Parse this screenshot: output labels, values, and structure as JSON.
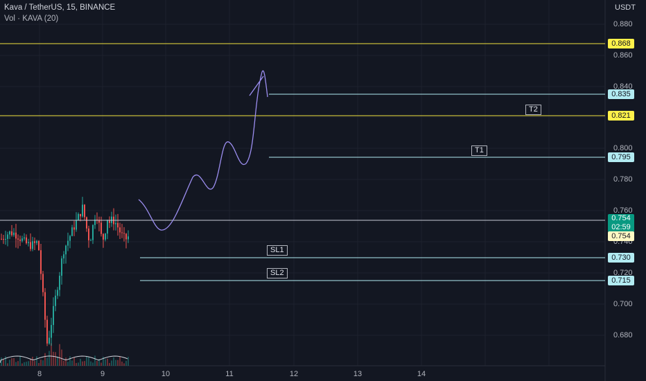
{
  "header": {
    "symbol_line": "Kava / TetherUS, 15, BINANCE",
    "indicator_line": "Vol · KAVA (20)"
  },
  "axis": {
    "currency": "USDT",
    "y_ticks": [
      "0.880",
      "0.860",
      "0.840",
      "0.800",
      "0.780",
      "0.760",
      "0.740",
      "0.720",
      "0.700",
      "0.680"
    ],
    "x_ticks": [
      "8",
      "9",
      "10",
      "11",
      "12",
      "13",
      "14"
    ]
  },
  "colors": {
    "background": "#131722",
    "resistance": "#f2e33d",
    "target_line": "#b2ebf2",
    "up": "#26a69a",
    "down": "#ef5350",
    "path": "#9c8ef0"
  },
  "levels": {
    "resistance_top": "0.868",
    "t2_price": "0.835",
    "resistance_mid": "0.821",
    "t1_price": "0.795",
    "current_price": "0.754",
    "countdown": "02:59",
    "prev_close": "0.754",
    "sl1_price": "0.730",
    "sl2_price": "0.715"
  },
  "tags": {
    "t2": "T2",
    "t1": "T1",
    "sl1": "SL1",
    "sl2": "SL2"
  },
  "chart_data": {
    "type": "candlestick",
    "symbol": "KAVA/USDT",
    "timeframe": "15",
    "ylim": [
      0.67,
      0.89
    ],
    "horizontal_levels": [
      {
        "price": 0.868
      },
      {
        "price": 0.835,
        "label": "T2"
      },
      {
        "price": 0.821
      },
      {
        "price": 0.795,
        "label": "T1"
      },
      {
        "price": 0.754
      },
      {
        "price": 0.73,
        "label": "SL1"
      },
      {
        "price": 0.715,
        "label": "SL2"
      }
    ],
    "price_range_shown": {
      "low": 0.665,
      "high": 0.78,
      "last": 0.754
    }
  }
}
